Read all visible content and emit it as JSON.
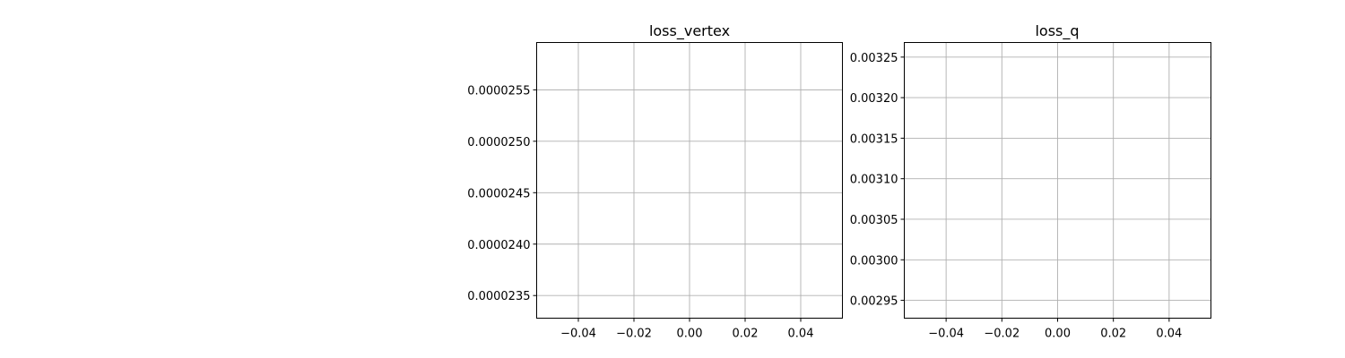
{
  "chart_data": [
    {
      "type": "line",
      "title": "loss_vertex",
      "xlabel": "",
      "ylabel": "",
      "series": [],
      "xlim": [
        -0.055,
        0.055
      ],
      "ylim": [
        2.328e-05,
        2.596e-05
      ],
      "x_ticks": [
        -0.04,
        -0.02,
        0.0,
        0.02,
        0.04
      ],
      "x_tick_labels": [
        "−0.04",
        "−0.02",
        "0.00",
        "0.02",
        "0.04"
      ],
      "y_ticks": [
        2.35e-05,
        2.4e-05,
        2.45e-05,
        2.5e-05,
        2.55e-05
      ],
      "y_tick_labels": [
        "0.0000235",
        "0.0000240",
        "0.0000245",
        "0.0000250",
        "0.0000255"
      ],
      "grid": true,
      "frame_color": "#000000",
      "grid_color": "#b0b0b0"
    },
    {
      "type": "line",
      "title": "loss_q",
      "xlabel": "",
      "ylabel": "",
      "series": [],
      "xlim": [
        -0.055,
        0.055
      ],
      "ylim": [
        0.002928,
        0.003268
      ],
      "x_ticks": [
        -0.04,
        -0.02,
        0.0,
        0.02,
        0.04
      ],
      "x_tick_labels": [
        "−0.04",
        "−0.02",
        "0.00",
        "0.02",
        "0.04"
      ],
      "y_ticks": [
        0.00295,
        0.003,
        0.00305,
        0.0031,
        0.00315,
        0.0032,
        0.00325
      ],
      "y_tick_labels": [
        "0.00295",
        "0.00300",
        "0.00305",
        "0.00310",
        "0.00315",
        "0.00320",
        "0.00325"
      ],
      "grid": true,
      "frame_color": "#000000",
      "grid_color": "#b0b0b0"
    }
  ]
}
